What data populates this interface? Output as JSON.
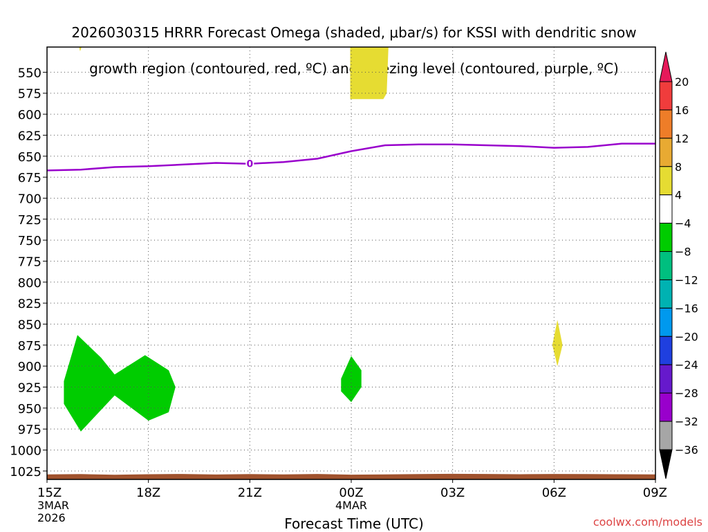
{
  "title_lines": [
    "2026030315 HRRR Forecast Omega (shaded, μbar/s) for KSSI with dendritic snow",
    "growth region (contoured, red, ºC) and freezing level (contoured, purple, ºC)"
  ],
  "x_title": "Forecast Time (UTC)",
  "credit": "coolwx.com/models",
  "chart_data": {
    "type": "time-height cross section",
    "title": "2026030315 HRRR Forecast Omega (shaded, μbar/s) for KSSI with dendritic snow growth region (contoured, red, ºC) and freezing level (contoured, purple, ºC)",
    "xlabel": "Forecast Time (UTC)",
    "ylabel": "",
    "x_range_hours": [
      0,
      18
    ],
    "y_range_hPa": [
      1035,
      520
    ],
    "y_ticks": [
      550,
      575,
      600,
      625,
      650,
      675,
      700,
      725,
      750,
      775,
      800,
      825,
      850,
      875,
      900,
      925,
      950,
      975,
      1000,
      1025
    ],
    "x_ticks": [
      {
        "hour": 0,
        "label": "15Z",
        "date": "3MAR",
        "year": "2026"
      },
      {
        "hour": 3,
        "label": "18Z"
      },
      {
        "hour": 6,
        "label": "21Z"
      },
      {
        "hour": 9,
        "label": "00Z",
        "date": "4MAR"
      },
      {
        "hour": 12,
        "label": "03Z"
      },
      {
        "hour": 15,
        "label": "06Z"
      },
      {
        "hour": 18,
        "label": "09Z"
      }
    ],
    "grid": true,
    "freezing_level": {
      "label": "0",
      "color": "#9900cc",
      "points_hour_hPa": [
        [
          0,
          667
        ],
        [
          1,
          666
        ],
        [
          2,
          663
        ],
        [
          3,
          662
        ],
        [
          4,
          660
        ],
        [
          5,
          658
        ],
        [
          6,
          659
        ],
        [
          7,
          657
        ],
        [
          8,
          653
        ],
        [
          9,
          644
        ],
        [
          10,
          637
        ],
        [
          11,
          636
        ],
        [
          12,
          636
        ],
        [
          13,
          637
        ],
        [
          14,
          638
        ],
        [
          15,
          640
        ],
        [
          16,
          639
        ],
        [
          17,
          635
        ],
        [
          18,
          635
        ]
      ]
    },
    "omega_regions": [
      {
        "bin": "-8 to -4",
        "color": "#00cc00",
        "points_hour_hPa": [
          [
            0.5,
            918
          ],
          [
            0.9,
            863
          ],
          [
            1.6,
            890
          ],
          [
            2.0,
            910
          ],
          [
            2.9,
            887
          ],
          [
            3.6,
            905
          ],
          [
            3.8,
            925
          ],
          [
            3.6,
            955
          ],
          [
            3.0,
            965
          ],
          [
            2.0,
            935
          ],
          [
            1.0,
            978
          ],
          [
            0.5,
            945
          ]
        ]
      },
      {
        "bin": "-8 to -4",
        "color": "#00cc00",
        "points_hour_hPa": [
          [
            8.7,
            915
          ],
          [
            9.0,
            888
          ],
          [
            9.3,
            905
          ],
          [
            9.3,
            925
          ],
          [
            9.0,
            943
          ],
          [
            8.7,
            930
          ]
        ]
      },
      {
        "bin": "4 to 8",
        "color": "#e6dc32",
        "points_hour_hPa": [
          [
            8.97,
            520
          ],
          [
            10.1,
            520
          ],
          [
            10.05,
            575
          ],
          [
            9.95,
            582
          ],
          [
            8.97,
            582
          ]
        ]
      },
      {
        "bin": "4 to 8",
        "color": "#e6dc32",
        "points_hour_hPa": [
          [
            14.95,
            875
          ],
          [
            15.1,
            845
          ],
          [
            15.25,
            875
          ],
          [
            15.1,
            900
          ]
        ]
      },
      {
        "bin": "4 to 8",
        "color": "#e6dc32",
        "points_hour_hPa": [
          [
            0.95,
            520
          ],
          [
            1.02,
            520
          ],
          [
            0.98,
            525
          ]
        ]
      }
    ],
    "terrain": {
      "color": "#a0522d",
      "surface_hPa": 1029
    },
    "colorbar": {
      "labels": [
        "20",
        "16",
        "12",
        "8",
        "4",
        "−4",
        "−8",
        "−12",
        "−16",
        "−20",
        "−24",
        "−28",
        "−32",
        "−36"
      ],
      "colors": [
        "#e6195a",
        "#f03c3c",
        "#ee7d28",
        "#e8aa32",
        "#e6dc32",
        "#ffffff",
        "#00cc00",
        "#00bf7f",
        "#00b2b2",
        "#0099ee",
        "#1f3fdf",
        "#6619cc",
        "#9900cc",
        "#a6a6a6",
        "#000000"
      ]
    }
  }
}
